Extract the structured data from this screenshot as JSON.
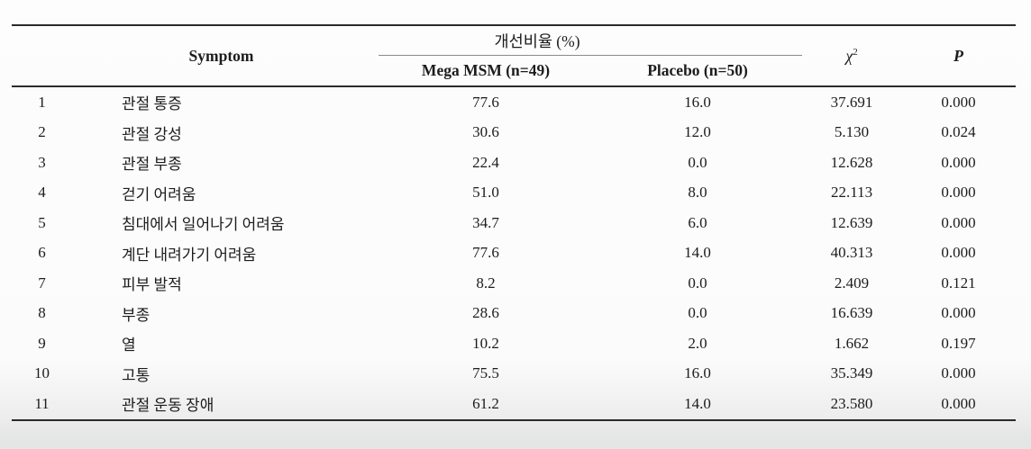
{
  "colors": {
    "rule_dark": "#2b2b2b",
    "rule_light": "#8a8a8a",
    "text": "#1c1c1c",
    "page_bottom_gray": "#e5e6e6"
  },
  "table": {
    "header": {
      "symptom": "Symptom",
      "improvement_group": "개선비율 (%)",
      "mega_msm": "Mega MSM (n=49)",
      "placebo": "Placebo (n=50)",
      "chi_symbol": "χ",
      "chi_sup": "2",
      "p": "P"
    },
    "rows": [
      {
        "no": "1",
        "symptom": "관절 통증",
        "mega": "77.6",
        "placebo": "16.0",
        "chi": "37.691",
        "p": "0.000"
      },
      {
        "no": "2",
        "symptom": "관절 강성",
        "mega": "30.6",
        "placebo": "12.0",
        "chi": "5.130",
        "p": "0.024"
      },
      {
        "no": "3",
        "symptom": "관절 부종",
        "mega": "22.4",
        "placebo": "0.0",
        "chi": "12.628",
        "p": "0.000"
      },
      {
        "no": "4",
        "symptom": "걷기 어려움",
        "mega": "51.0",
        "placebo": "8.0",
        "chi": "22.113",
        "p": "0.000"
      },
      {
        "no": "5",
        "symptom": "침대에서 일어나기 어려움",
        "mega": "34.7",
        "placebo": "6.0",
        "chi": "12.639",
        "p": "0.000"
      },
      {
        "no": "6",
        "symptom": "계단 내려가기 어려움",
        "mega": "77.6",
        "placebo": "14.0",
        "chi": "40.313",
        "p": "0.000"
      },
      {
        "no": "7",
        "symptom": "피부 발적",
        "mega": "8.2",
        "placebo": "0.0",
        "chi": "2.409",
        "p": "0.121"
      },
      {
        "no": "8",
        "symptom": "부종",
        "mega": "28.6",
        "placebo": "0.0",
        "chi": "16.639",
        "p": "0.000"
      },
      {
        "no": "9",
        "symptom": "열",
        "mega": "10.2",
        "placebo": "2.0",
        "chi": "1.662",
        "p": "0.197"
      },
      {
        "no": "10",
        "symptom": "고통",
        "mega": "75.5",
        "placebo": "16.0",
        "chi": "35.349",
        "p": "0.000"
      },
      {
        "no": "11",
        "symptom": "관절 운동 장애",
        "mega": "61.2",
        "placebo": "14.0",
        "chi": "23.580",
        "p": "0.000"
      }
    ]
  }
}
